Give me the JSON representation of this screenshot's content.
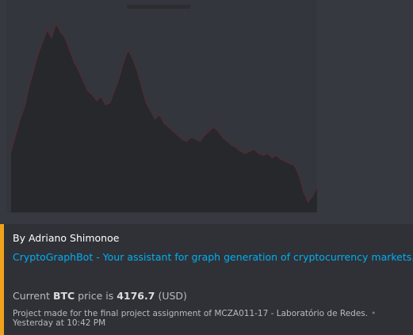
{
  "colors": {
    "accent_bar": "#f0a21b",
    "link": "#00aff4",
    "chart_fill": "#26282c",
    "chart_line": "#5a2a33"
  },
  "embed": {
    "author_text": "By Adriano Shimonoe",
    "title": "CryptoGraphBot - Your assistant for graph generation of cryptocurrency markets.",
    "price": {
      "prefix": "Current",
      "symbol": "BTC",
      "middle": "price is",
      "value": "4176.7",
      "currency": "(USD)"
    },
    "footer": {
      "text": "Project made for the final project assignment of MCZA011-17 - Laboratório de Redes.",
      "separator": "•",
      "timestamp": "Yesterday at 10:42 PM"
    }
  },
  "chart_data": {
    "type": "area",
    "title": "",
    "xlabel": "",
    "ylabel": "",
    "values": [
      30,
      38,
      46,
      52,
      62,
      70,
      78,
      84,
      90,
      86,
      93,
      89,
      86,
      80,
      74,
      70,
      65,
      60,
      58,
      55,
      57,
      53,
      54,
      60,
      66,
      74,
      80,
      76,
      70,
      62,
      54,
      50,
      46,
      48,
      44,
      42,
      40,
      38,
      36,
      35,
      37,
      36,
      35,
      38,
      40,
      42,
      40,
      37,
      35,
      33,
      32,
      30,
      29,
      30,
      31,
      29,
      28,
      29,
      27,
      28,
      26,
      25,
      24,
      23,
      18,
      10,
      5,
      8,
      12
    ],
    "ylim": [
      0,
      100
    ],
    "grid": false
  }
}
